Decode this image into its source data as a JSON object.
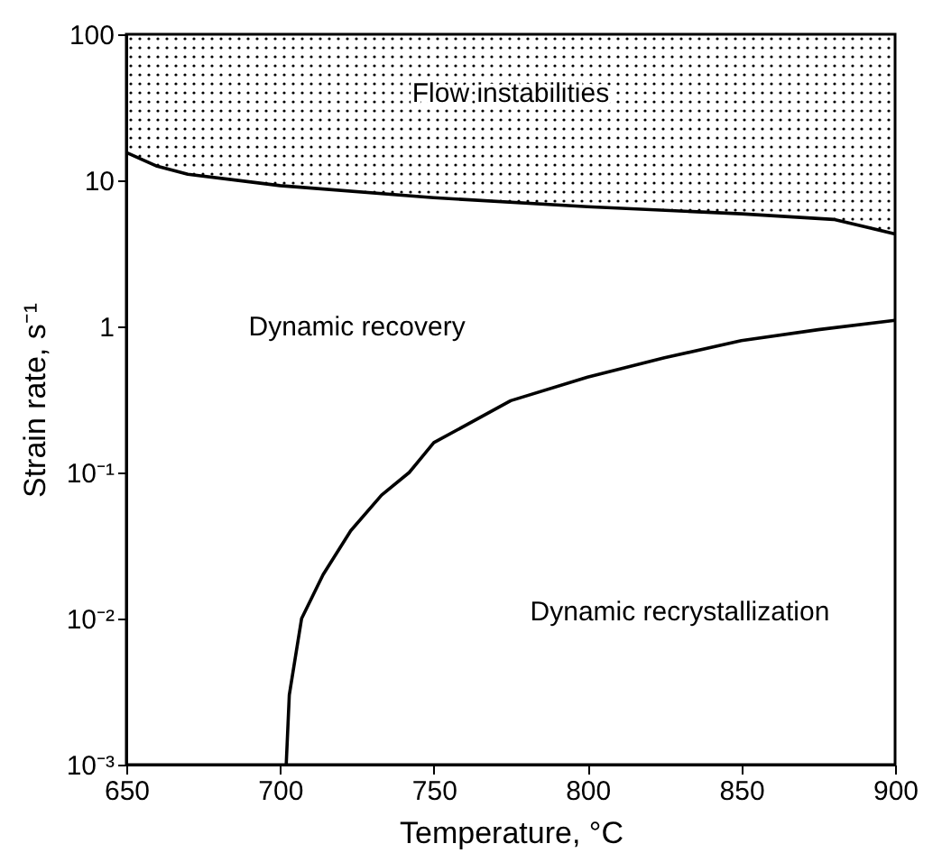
{
  "chart_data": {
    "type": "line",
    "xlabel": "Temperature, °C",
    "ylabel": "Strain rate, s⁻¹",
    "log": "y",
    "xlim": [
      650,
      900
    ],
    "xticks": [
      650,
      700,
      750,
      800,
      850,
      900
    ],
    "ylim": [
      0.001,
      100
    ],
    "yticks": [
      {
        "value": 0.001,
        "label": "10⁻³"
      },
      {
        "value": 0.01,
        "label": "10⁻²"
      },
      {
        "value": 0.1,
        "label": "10⁻¹"
      },
      1,
      10,
      100
    ],
    "series": [
      {
        "type": "line",
        "color": "#000000",
        "x": [
          650,
          660,
          670,
          700,
          750,
          800,
          850,
          880,
          900
        ],
        "values": [
          15.5,
          12.5,
          11,
          9.2,
          7.6,
          6.6,
          5.9,
          5.4,
          4.3
        ],
        "lower": [
          15.5,
          12.5,
          11,
          9.2,
          7.6,
          6.6,
          5.9,
          5.4,
          4.3
        ],
        "upper": [
          100,
          100,
          100,
          100,
          100,
          100,
          100,
          100,
          100
        ]
      },
      {
        "color": "#000000",
        "x": [
          702,
          703,
          707,
          714,
          723,
          733,
          742,
          750,
          775,
          800,
          825,
          850,
          875,
          900
        ],
        "values": [
          0.001,
          0.003,
          0.01,
          0.02,
          0.04,
          0.07,
          0.1,
          0.16,
          0.31,
          0.45,
          0.61,
          0.8,
          0.95,
          1.1
        ]
      }
    ],
    "annotations": [
      "Flow instabilities",
      "Dynamic recovery",
      "Dynamic recrystallization"
    ]
  }
}
